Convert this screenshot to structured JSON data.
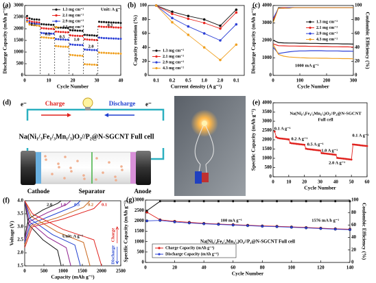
{
  "diagram": {
    "panel_label": "(d)",
    "charge": "Charge",
    "discharge": "Discharge",
    "electrons": [
      "e⁻",
      "e⁻"
    ],
    "cell_label": "Na(Ni₁/₃Fe₁/₃Mn₁/₃)O₂//P₂@N-SGCNT Full cell",
    "cathode": "Cathode",
    "separator": "Separator",
    "anode": "Anode"
  },
  "chart_data": [
    {
      "type": "line",
      "panel_label": "(a)",
      "xlabel": "Cycle Number",
      "ylabel": "Discharge Capacity (mAh g⁻¹)",
      "xlim": [
        0,
        40
      ],
      "xticks": [
        0,
        10,
        20,
        30,
        40
      ],
      "ylim": [
        0,
        3000
      ],
      "yticks": [
        0,
        500,
        1000,
        1500,
        2000,
        2500,
        3000
      ],
      "annotations": [
        "0.1",
        "0.2",
        "0.5",
        "1.0",
        "2.0",
        "0.1",
        "Unit: A g⁻¹"
      ],
      "x": [
        1,
        2,
        3,
        4,
        5,
        6,
        7,
        8,
        9,
        10,
        11,
        12,
        13,
        14,
        15,
        16,
        17,
        18,
        19,
        20,
        21,
        22,
        23,
        24,
        25,
        26,
        27,
        28,
        29,
        30,
        31,
        32,
        33,
        34,
        35,
        36,
        37,
        38,
        39,
        40
      ],
      "series": [
        {
          "name": "1.3 mg cm⁻²",
          "color": "#111111",
          "values": [
            2550,
            2450,
            2420,
            2400,
            2400,
            2390,
            2200,
            2190,
            2180,
            2180,
            2170,
            2170,
            2060,
            2050,
            2050,
            2040,
            2040,
            2030,
            1940,
            1930,
            1930,
            1920,
            1920,
            1910,
            1740,
            1730,
            1720,
            1720,
            1710,
            1700,
            2300,
            2290,
            2290,
            2280,
            2280,
            2270,
            2270,
            2260,
            2260,
            2250
          ]
        },
        {
          "name": "2.1 mg cm⁻²",
          "color": "#e8251f",
          "values": [
            2450,
            2330,
            2300,
            2290,
            2280,
            2270,
            2030,
            2020,
            2010,
            2000,
            2000,
            1990,
            1880,
            1870,
            1860,
            1860,
            1850,
            1850,
            1720,
            1710,
            1700,
            1700,
            1690,
            1690,
            1550,
            1540,
            1530,
            1530,
            1520,
            1520,
            2100,
            2090,
            2080,
            2080,
            2070,
            2070,
            2060,
            2060,
            2050,
            2050
          ]
        },
        {
          "name": "2.9 mg cm⁻²",
          "color": "#2b3fd6",
          "values": [
            2350,
            2250,
            2230,
            2220,
            2210,
            2200,
            1820,
            1810,
            1800,
            1800,
            1790,
            1790,
            1560,
            1550,
            1540,
            1540,
            1530,
            1530,
            1330,
            1320,
            1310,
            1310,
            1300,
            1300,
            1110,
            1100,
            1100,
            1090,
            1090,
            1080,
            1620,
            1610,
            1600,
            1600,
            1590,
            1590,
            1580,
            1580,
            1570,
            1570
          ]
        },
        {
          "name": "4.3 mg cm⁻²",
          "color": "#f0a020",
          "values": [
            2300,
            2180,
            2160,
            2150,
            2140,
            2130,
            1640,
            1630,
            1620,
            1610,
            1600,
            1600,
            1260,
            1250,
            1240,
            1230,
            1230,
            1220,
            880,
            870,
            860,
            850,
            850,
            840,
            480,
            470,
            470,
            460,
            460,
            450,
            980,
            970,
            970,
            960,
            960,
            950,
            950,
            940,
            940,
            930
          ]
        }
      ]
    },
    {
      "type": "line",
      "panel_label": "(b)",
      "xlabel": "Current density (A g⁻¹)",
      "ylabel": "Capacity retention (%)",
      "categories": [
        "0.1",
        "0.2",
        "0.5",
        "1.0",
        "2.0",
        "0.1"
      ],
      "ylim": [
        0,
        100
      ],
      "yticks": [
        0,
        20,
        40,
        60,
        80,
        100
      ],
      "series": [
        {
          "name": "1.3 mg cm⁻²",
          "color": "#111111",
          "values": [
            100,
            91,
            85,
            80,
            71,
            94
          ]
        },
        {
          "name": "2.1 mg cm⁻²",
          "color": "#e8251f",
          "values": [
            100,
            88,
            81,
            75,
            67,
            90
          ]
        },
        {
          "name": "2.9 mg cm⁻²",
          "color": "#2b3fd6",
          "values": [
            100,
            82,
            70,
            60,
            50,
            73
          ]
        },
        {
          "name": "4.3 mg cm⁻²",
          "color": "#f0a020",
          "values": [
            100,
            76,
            58,
            40,
            22,
            44
          ]
        }
      ]
    },
    {
      "type": "line",
      "panel_label": "(c)",
      "xlabel": "Cycle Number",
      "ylabel": "Discharge Capacity (mAh g⁻¹)",
      "y2label": "Coulombic Efficiency (%)",
      "xlim": [
        0,
        300
      ],
      "xticks": [
        0,
        100,
        200,
        300
      ],
      "ylim": [
        0,
        4000
      ],
      "yticks": [
        0,
        1000,
        2000,
        3000,
        4000
      ],
      "y2lim": [
        0,
        100
      ],
      "y2ticks": [
        0,
        20,
        40,
        60,
        80,
        100
      ],
      "annotations": [
        "1000 mA g⁻¹"
      ],
      "x": [
        1,
        20,
        40,
        60,
        80,
        100,
        120,
        140,
        160,
        180,
        200,
        220,
        240,
        260,
        280,
        300
      ],
      "series": [
        {
          "name": "1.3 mg cm⁻²",
          "color": "#111111",
          "values": [
            2000,
            1880,
            1860,
            1850,
            1850,
            1840,
            1840,
            1830,
            1830,
            1820,
            1820,
            1810,
            1810,
            1800,
            1800,
            1790
          ],
          "efficiency": [
            78,
            97,
            97,
            97,
            97,
            97,
            97,
            97,
            97,
            97,
            97,
            97,
            97,
            97,
            97,
            97
          ]
        },
        {
          "name": "2.1 mg cm⁻²",
          "color": "#e8251f",
          "values": [
            1800,
            1700,
            1690,
            1680,
            1680,
            1670,
            1670,
            1660,
            1660,
            1650,
            1650,
            1640,
            1640,
            1630,
            1630,
            1620
          ],
          "efficiency": [
            80,
            96,
            97,
            97,
            97,
            97,
            97,
            97,
            97,
            97,
            97,
            97,
            97,
            97,
            97,
            97
          ]
        },
        {
          "name": "2.9 mg cm⁻²",
          "color": "#2b3fd6",
          "values": [
            1600,
            1250,
            1300,
            1350,
            1380,
            1400,
            1400,
            1410,
            1410,
            1410,
            1400,
            1400,
            1400,
            1390,
            1390,
            1380
          ],
          "efficiency": [
            82,
            96,
            96,
            97,
            97,
            97,
            97,
            97,
            97,
            97,
            97,
            97,
            97,
            97,
            97,
            97
          ]
        },
        {
          "name": "4.3 mg cm⁻²",
          "color": "#f0a020",
          "values": [
            1750,
            1200,
            1100,
            1050,
            1030,
            1010,
            1000,
            990,
            990,
            980,
            980,
            970,
            970,
            960,
            960,
            950
          ],
          "efficiency": [
            76,
            96,
            96,
            96,
            97,
            97,
            97,
            97,
            97,
            97,
            97,
            97,
            97,
            97,
            97,
            97
          ]
        }
      ]
    },
    {
      "type": "line",
      "panel_label": "(e)",
      "xlabel": "Cycle Number",
      "ylabel": "Specific Capacity (mAh g⁻¹)",
      "title_lines": [
        "Na(Ni₁/₃Fe₁/₃Mn₁/₃)O₂//P₂@N-SGCNT",
        "Full cell"
      ],
      "xlim": [
        0,
        60
      ],
      "xticks": [
        0,
        10,
        20,
        30,
        40,
        50,
        60
      ],
      "ylim": [
        0,
        4000
      ],
      "yticks": [
        0,
        500,
        1000,
        1500,
        2000,
        2500,
        3000,
        3500,
        4000
      ],
      "annotations": [
        "0.1 A g⁻¹",
        "0.2 A g⁻¹",
        "0.5 A g⁻¹",
        "1.0 A g⁻¹",
        "2.0 A g⁻¹",
        "0.1 A g⁻¹"
      ],
      "x": [
        1,
        2,
        3,
        4,
        5,
        6,
        7,
        8,
        9,
        10,
        11,
        12,
        13,
        14,
        15,
        16,
        17,
        18,
        19,
        20,
        21,
        22,
        23,
        24,
        25,
        26,
        27,
        28,
        29,
        30,
        31,
        32,
        33,
        34,
        35,
        36,
        37,
        38,
        39,
        40,
        41,
        42,
        43,
        44,
        45,
        46,
        47,
        48,
        49,
        50,
        51,
        52,
        53,
        54,
        55,
        56,
        57,
        58,
        59,
        60
      ],
      "series": [
        {
          "color": "#e0201c",
          "values": [
            2450,
            2150,
            2100,
            2080,
            2070,
            2060,
            2050,
            2040,
            2030,
            2020,
            1830,
            1810,
            1800,
            1790,
            1780,
            1770,
            1760,
            1750,
            1740,
            1730,
            1520,
            1500,
            1490,
            1480,
            1470,
            1460,
            1450,
            1440,
            1430,
            1420,
            1280,
            1270,
            1260,
            1250,
            1240,
            1230,
            1220,
            1210,
            1200,
            1190,
            1020,
            1010,
            1000,
            990,
            980,
            970,
            960,
            950,
            940,
            930,
            1750,
            1740,
            1730,
            1720,
            1710,
            1700,
            1690,
            1680,
            1670,
            1660
          ]
        }
      ]
    },
    {
      "type": "line",
      "panel_label": "(f)",
      "xlabel": "Capacity (mAh g⁻¹)",
      "ylabel": "Voltage (V)",
      "xlim": [
        0,
        2500
      ],
      "xticks": [
        0,
        500,
        1000,
        1500,
        2000,
        2500
      ],
      "ylim": [
        1.5,
        4.0
      ],
      "yticks": [
        1.5,
        {
          "value": 2,
          "label": "2.0"
        },
        2.5,
        {
          "value": 3,
          "label": "3.0"
        },
        3.5,
        {
          "value": 4,
          "label": "4.0"
        }
      ],
      "annotations": [
        "Unit: A g⁻¹",
        "Charge",
        "Discharge"
      ],
      "series": [
        {
          "name": "2.0",
          "color": "#111111",
          "charge": {
            "x": [
              0,
              95,
              475,
              855,
              950
            ],
            "y": [
              2.6,
              3.3,
              3.65,
              3.9,
              4.0
            ]
          },
          "discharge": {
            "x": [
              0,
              95,
              475,
              855,
              950
            ],
            "y": [
              4.0,
              3.1,
              2.5,
              2.1,
              1.5
            ]
          }
        },
        {
          "name": "1.0",
          "color": "#8b1a8b",
          "charge": {
            "x": [
              0,
              120,
              600,
              1080,
              1200
            ],
            "y": [
              2.5,
              3.2,
              3.55,
              3.85,
              4.0
            ]
          },
          "discharge": {
            "x": [
              0,
              120,
              600,
              1080,
              1200
            ],
            "y": [
              4.0,
              3.2,
              2.6,
              2.2,
              1.5
            ]
          }
        },
        {
          "name": "0.5",
          "color": "#1f3fcf",
          "charge": {
            "x": [
              0,
              145,
              725,
              1305,
              1450
            ],
            "y": [
              2.4,
              3.1,
              3.45,
              3.8,
              4.0
            ]
          },
          "discharge": {
            "x": [
              0,
              145,
              725,
              1305,
              1450
            ],
            "y": [
              4.0,
              3.3,
              2.7,
              2.3,
              1.5
            ]
          }
        },
        {
          "name": "0.2",
          "color": "#c86418",
          "charge": {
            "x": [
              0,
              170,
              850,
              1530,
              1700
            ],
            "y": [
              2.3,
              3.05,
              3.35,
              3.75,
              4.0
            ]
          },
          "discharge": {
            "x": [
              0,
              170,
              850,
              1530,
              1700
            ],
            "y": [
              4.0,
              3.4,
              2.8,
              2.4,
              1.5
            ]
          }
        },
        {
          "name": "0.1",
          "color": "#e0201c",
          "charge": {
            "x": [
              0,
              200,
              1000,
              1800,
              2000
            ],
            "y": [
              2.2,
              3.0,
              3.3,
              3.7,
              4.0
            ]
          },
          "discharge": {
            "x": [
              0,
              200,
              1000,
              1800,
              2000
            ],
            "y": [
              4.0,
              3.5,
              2.9,
              2.5,
              1.5
            ]
          }
        }
      ]
    },
    {
      "type": "line",
      "panel_label": "(g)",
      "xlabel": "Cycle Number",
      "ylabel": "Specific Capacity (mAh g⁻¹)",
      "y2label": "Coulombic Efficiency (%)",
      "title": "Na(Ni₁/₃Fe₁/₃Mn₁/₃)O₂//P₂@N-SGCNT Full cell",
      "xlim": [
        0,
        140
      ],
      "xticks": [
        0,
        20,
        40,
        60,
        80,
        100,
        120,
        140
      ],
      "ylim": [
        0,
        3000
      ],
      "yticks": [
        0,
        500,
        1000,
        1500,
        2000,
        2500,
        3000
      ],
      "y2lim": [
        0,
        100
      ],
      "y2ticks": [
        0,
        20,
        40,
        60,
        80,
        100
      ],
      "annotations": [
        "100 mA g⁻¹",
        "1576 mA h g⁻¹"
      ],
      "x": [
        1,
        10,
        20,
        30,
        40,
        50,
        60,
        70,
        80,
        90,
        100,
        110,
        120,
        130,
        140
      ],
      "series": [
        {
          "name": "Charge Capacity (mAh g⁻¹)",
          "color": "#e0201c",
          "values": [
            2420,
            2050,
            1980,
            1930,
            1880,
            1850,
            1820,
            1790,
            1760,
            1740,
            1710,
            1680,
            1650,
            1620,
            1600
          ]
        },
        {
          "name": "Discharge Capacity (mAh g⁻¹)",
          "color": "#2b3fd6",
          "values": [
            2000,
            2020,
            1950,
            1900,
            1860,
            1830,
            1800,
            1770,
            1740,
            1720,
            1690,
            1660,
            1630,
            1600,
            1576
          ]
        }
      ],
      "efficiency": {
        "color": "#111111",
        "values": [
          83,
          98,
          98,
          98,
          98,
          98,
          98,
          98,
          98,
          98,
          98,
          98,
          98,
          98,
          98
        ]
      }
    }
  ]
}
